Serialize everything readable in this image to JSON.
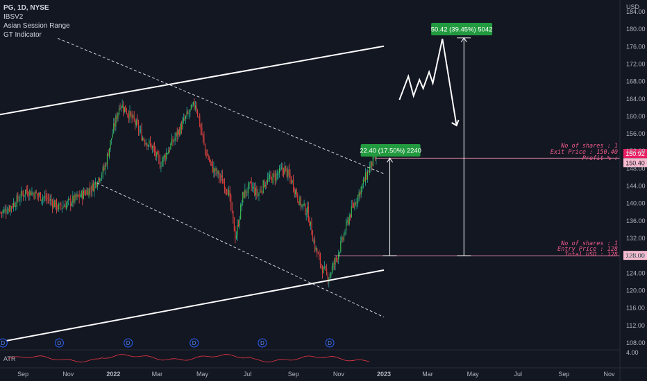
{
  "chart_data": {
    "type": "candlestick",
    "symbol_line": "PG, 1D, NYSE",
    "indicators": [
      "IBSV2",
      "Asian Session Range",
      "GT Indicator"
    ],
    "y_axis_title": "USD",
    "y_ticks": [
      "108.00",
      "112.00",
      "116.00",
      "120.00",
      "124.00",
      "128.00",
      "132.00",
      "136.00",
      "140.00",
      "144.00",
      "148.00",
      "152.00",
      "156.00",
      "160.00",
      "164.00",
      "168.00",
      "172.00",
      "176.00",
      "180.00",
      "184.00"
    ],
    "x_ticks": [
      "Sep",
      "Nov",
      "2022",
      "Mar",
      "May",
      "Jul",
      "Sep",
      "Nov",
      "2023",
      "Mar",
      "May",
      "Jul",
      "Sep",
      "Nov"
    ],
    "ylim": [
      106.4,
      186.7
    ],
    "price_labels": {
      "current": "150.92",
      "exit": "150.40",
      "entry": "128.00"
    },
    "badges": {
      "small_move": "22.40 (17.50%) 2240",
      "big_move": "50.42 (39.45%) 5042"
    },
    "exit_box": [
      "No of shares : 1",
      "Exit Price    : 150.40",
      "Profit %       :"
    ],
    "entry_box": [
      "No of shares : 1",
      "Entry Price  : 128",
      "Total USD    : 128"
    ],
    "atr": {
      "label": "ATR",
      "axis_value": "4.00"
    },
    "dividend_marker": "D",
    "price_path": [
      [
        "2021-08-05",
        138
      ],
      [
        "2021-08-20",
        140
      ],
      [
        "2021-09-05",
        143
      ],
      [
        "2021-09-20",
        142
      ],
      [
        "2021-10-05",
        141
      ],
      [
        "2021-10-20",
        139
      ],
      [
        "2021-11-05",
        140.5
      ],
      [
        "2021-11-20",
        142
      ],
      [
        "2021-12-05",
        144
      ],
      [
        "2021-12-20",
        148
      ],
      [
        "2022-01-01",
        157
      ],
      [
        "2022-01-10",
        163
      ],
      [
        "2022-01-20",
        161
      ],
      [
        "2022-02-01",
        158
      ],
      [
        "2022-02-10",
        155
      ],
      [
        "2022-02-22",
        153
      ],
      [
        "2022-03-05",
        149
      ],
      [
        "2022-03-15",
        152
      ],
      [
        "2022-03-28",
        156
      ],
      [
        "2022-04-10",
        160
      ],
      [
        "2022-04-22",
        163
      ],
      [
        "2022-05-05",
        152
      ],
      [
        "2022-05-15",
        148
      ],
      [
        "2022-05-25",
        146
      ],
      [
        "2022-06-05",
        143
      ],
      [
        "2022-06-15",
        132
      ],
      [
        "2022-06-25",
        142
      ],
      [
        "2022-07-05",
        144
      ],
      [
        "2022-07-15",
        142
      ],
      [
        "2022-07-25",
        145
      ],
      [
        "2022-08-05",
        146
      ],
      [
        "2022-08-20",
        148
      ],
      [
        "2022-08-30",
        145
      ],
      [
        "2022-09-10",
        140
      ],
      [
        "2022-09-20",
        138
      ],
      [
        "2022-09-30",
        130
      ],
      [
        "2022-10-10",
        125
      ],
      [
        "2022-10-18",
        123
      ],
      [
        "2022-10-28",
        127
      ],
      [
        "2022-11-05",
        131
      ],
      [
        "2022-11-15",
        137
      ],
      [
        "2022-11-25",
        141
      ],
      [
        "2022-12-05",
        145
      ],
      [
        "2022-12-15",
        149
      ],
      [
        "2022-12-22",
        151
      ]
    ],
    "upper_channel": [
      [
        "2021-08-01",
        160.4
      ],
      [
        "2023-01-01",
        176.1
      ]
    ],
    "lower_channel": [
      [
        "2021-08-01",
        108.2
      ],
      [
        "2023-01-01",
        124.7
      ]
    ],
    "down_channel_top": [
      [
        "2021-10-18",
        177.9
      ],
      [
        "2023-01-01",
        146.8
      ]
    ],
    "down_channel_bottom": [
      [
        "2021-12-10",
        144.7
      ],
      [
        "2023-01-01",
        113.9
      ]
    ],
    "projection_path": [
      [
        "2023-01-22",
        163.8
      ],
      [
        "2023-02-03",
        169.2
      ],
      [
        "2023-02-10",
        164.7
      ],
      [
        "2023-02-18",
        168.4
      ],
      [
        "2023-02-23",
        166.4
      ],
      [
        "2023-03-03",
        170.2
      ],
      [
        "2023-03-08",
        167.6
      ],
      [
        "2023-03-21",
        177.8
      ],
      [
        "2023-04-09",
        157.9
      ]
    ],
    "small_move_range": [
      128,
      150.4
    ],
    "big_move_range": [
      128,
      178
    ]
  }
}
